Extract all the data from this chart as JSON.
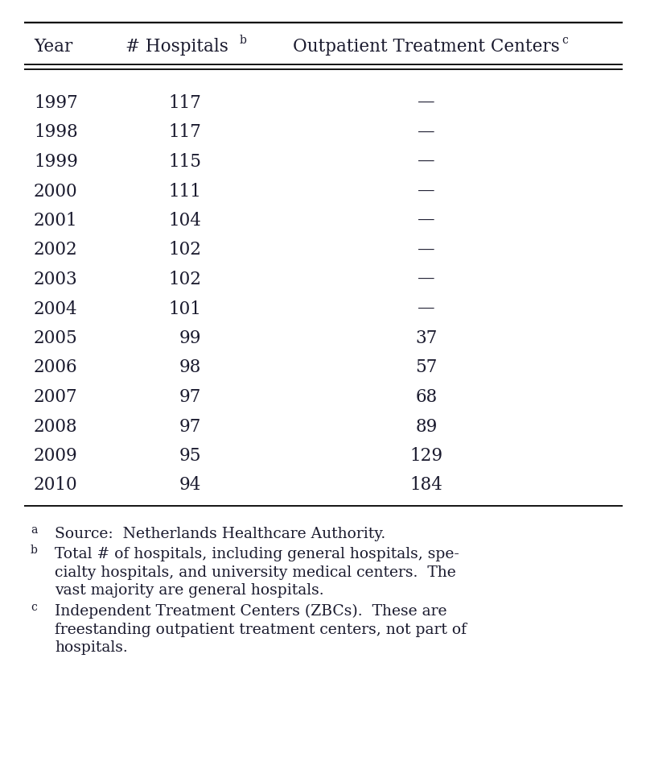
{
  "years": [
    "1997",
    "1998",
    "1999",
    "2000",
    "2001",
    "2002",
    "2003",
    "2004",
    "2005",
    "2006",
    "2007",
    "2008",
    "2009",
    "2010"
  ],
  "hospitals": [
    "117",
    "117",
    "115",
    "111",
    "104",
    "102",
    "102",
    "101",
    "99",
    "98",
    "97",
    "97",
    "95",
    "94"
  ],
  "outpatient": [
    null,
    null,
    null,
    null,
    null,
    null,
    null,
    null,
    "37",
    "57",
    "68",
    "89",
    "129",
    "184"
  ],
  "header_year": "Year",
  "header_hospitals": "# Hospitals",
  "header_hospitals_super": "b",
  "header_outpatient": "Outpatient Treatment Centers",
  "header_outpatient_super": "c",
  "footnote_a_marker": "a",
  "footnote_a": "Source:  Netherlands Healthcare Authority.",
  "footnote_b_marker": "b",
  "footnote_b1": "Total # of hospitals, including general hospitals, spe-",
  "footnote_b2": "cialty hospitals, and university medical centers.  The",
  "footnote_b3": "vast majority are general hospitals.",
  "footnote_c_marker": "c",
  "footnote_c1": "Independent Treatment Centers (ZBCs).  These are",
  "footnote_c2": "freestanding outpatient treatment centers, not part of",
  "footnote_c3": "hospitals.",
  "bg_color": "#ffffff",
  "text_color": "#1a1a2e",
  "dash": "—",
  "fig_width": 8.04,
  "fig_height": 9.46,
  "dpi": 100
}
